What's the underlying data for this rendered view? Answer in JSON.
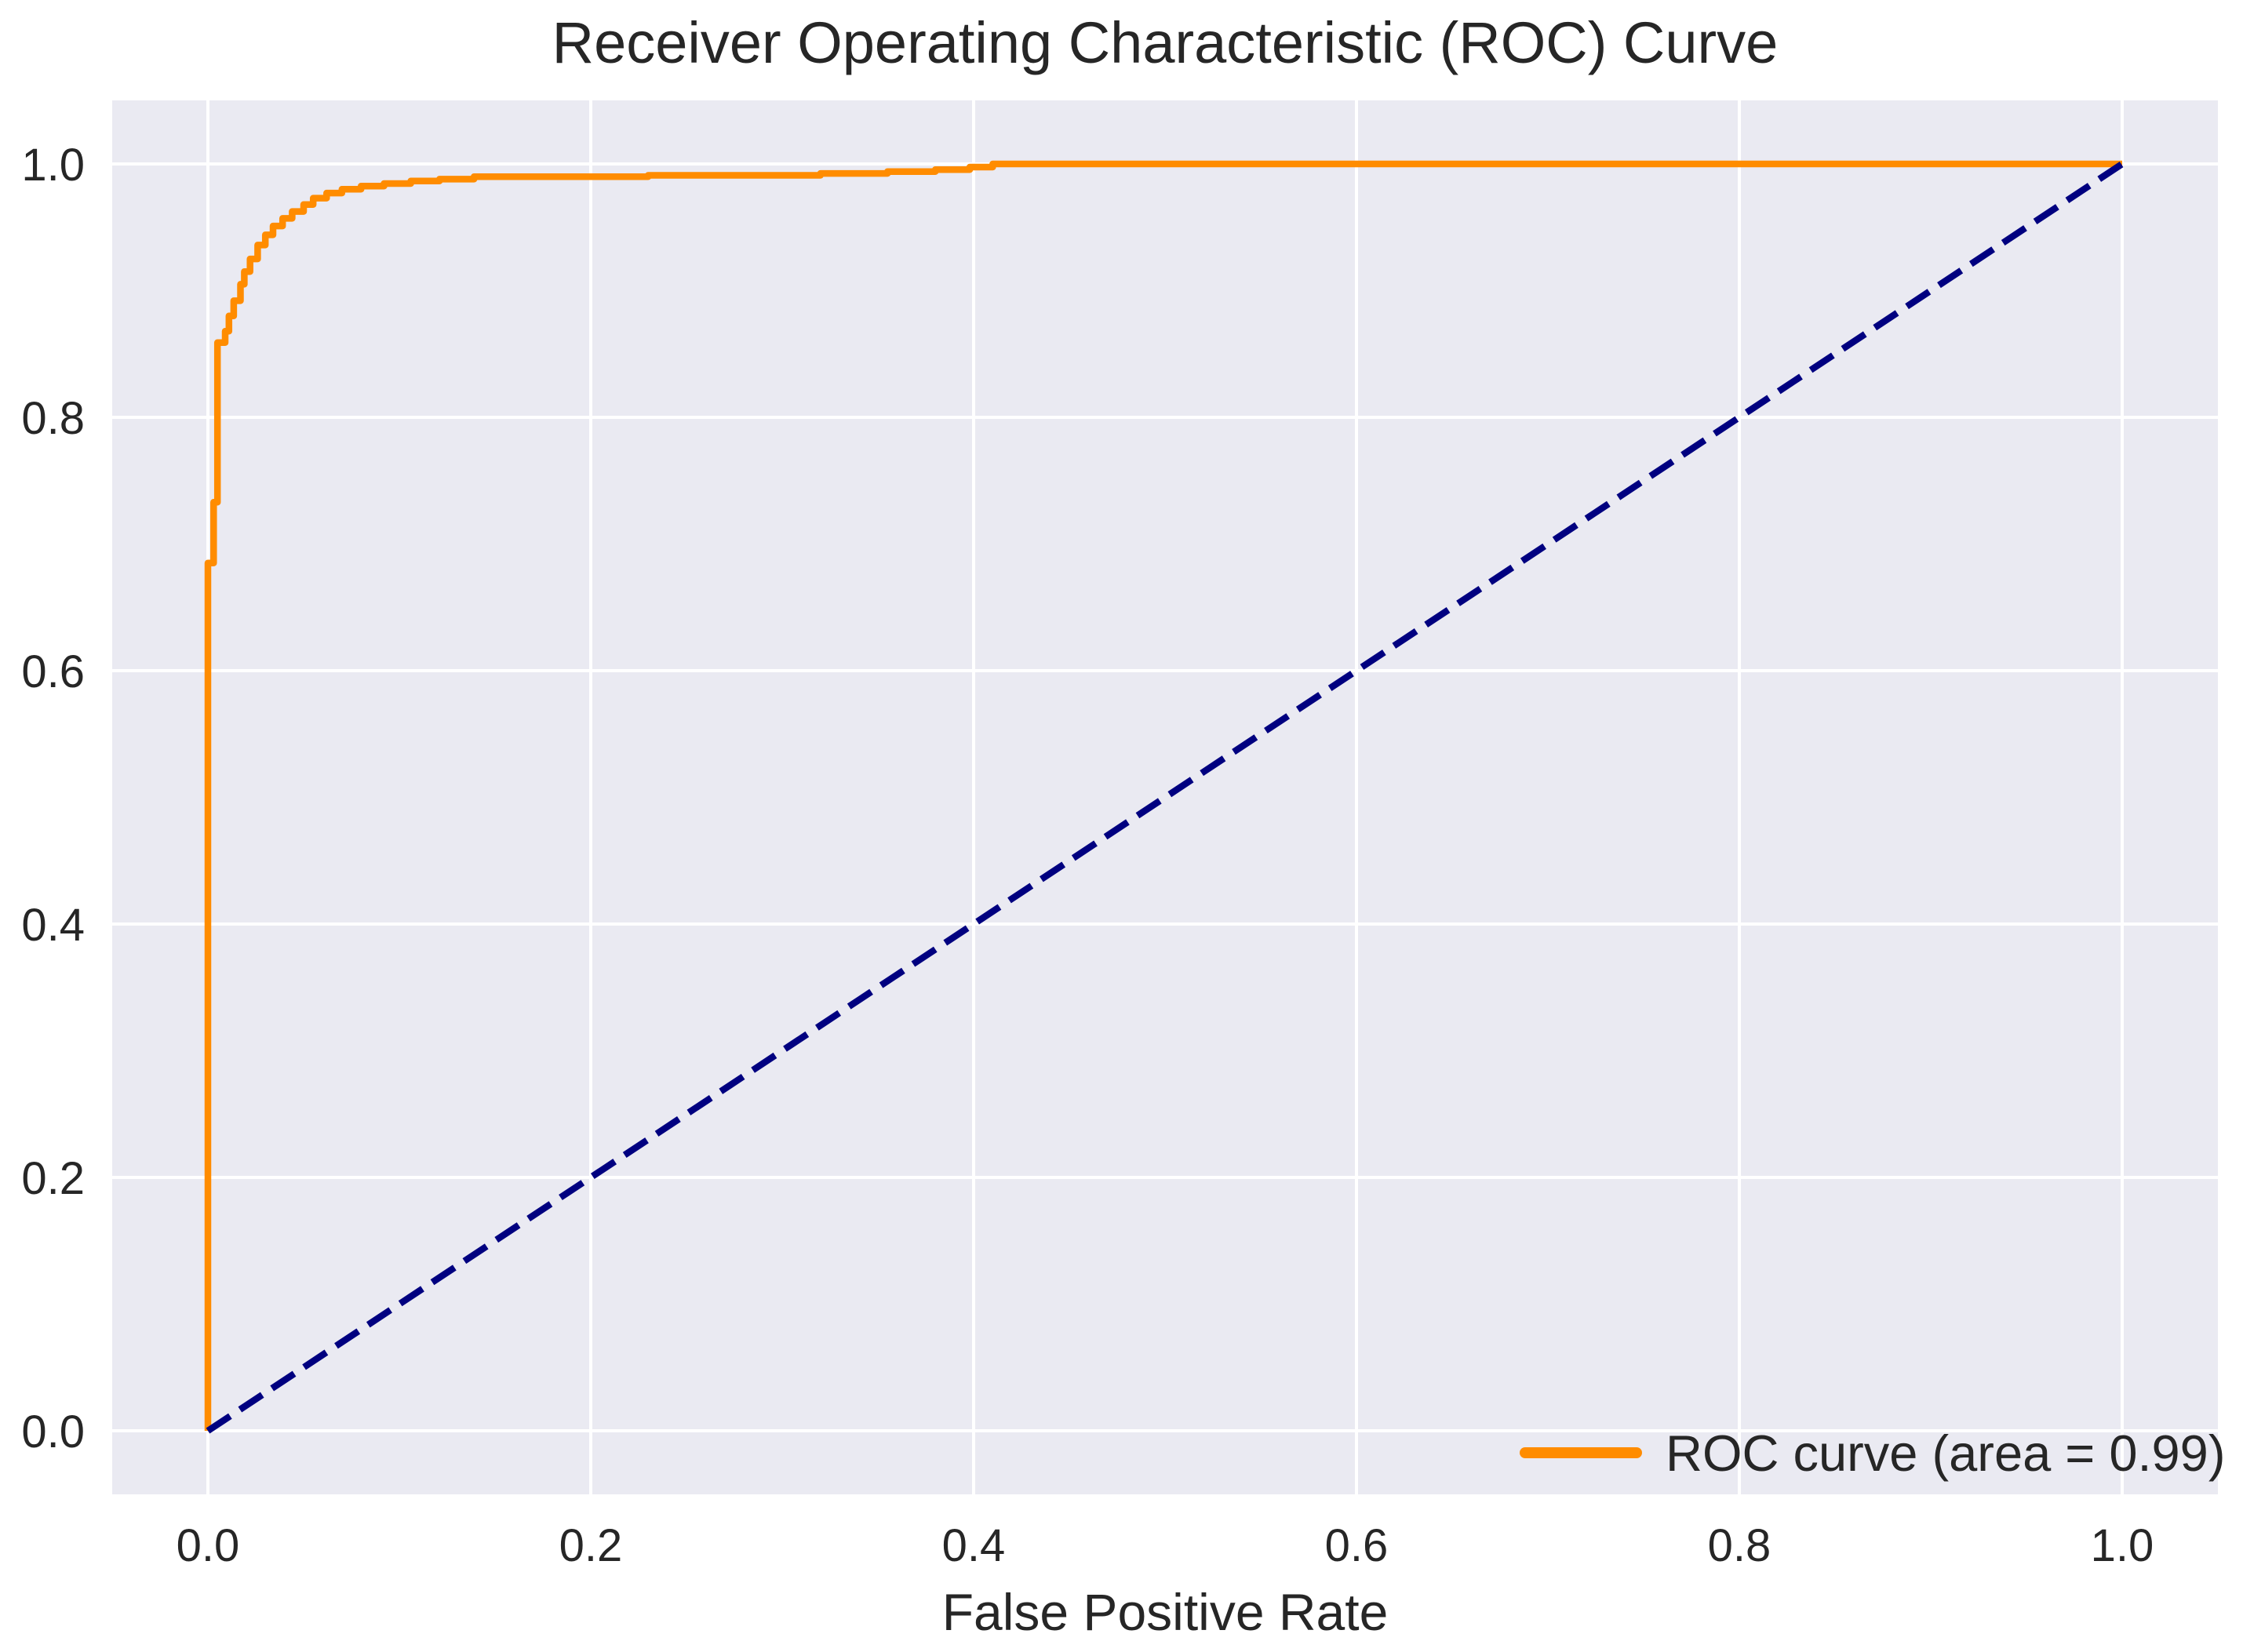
{
  "colors": {
    "figure_background": "#ffffff",
    "plot_background": "#eaeaf2",
    "grid": "#ffffff",
    "text": "#262626",
    "roc_curve": "#ff8c00",
    "chance_line": "#000080"
  },
  "chart_data": {
    "type": "line",
    "title": "Receiver Operating Characteristic (ROC) Curve",
    "xlabel": "False Positive Rate",
    "ylabel": "",
    "xlim": [
      -0.05,
      1.05
    ],
    "ylim": [
      -0.05,
      1.05
    ],
    "grid": true,
    "legend_position": "lower right",
    "x_ticks": [
      0.0,
      0.2,
      0.4,
      0.6,
      0.8,
      1.0
    ],
    "x_tick_labels": [
      "0.0",
      "0.2",
      "0.4",
      "0.6",
      "0.8",
      "1.0"
    ],
    "y_ticks": [
      0.0,
      0.2,
      0.4,
      0.6,
      0.8,
      1.0
    ],
    "y_tick_labels": [
      "0.0",
      "0.2",
      "0.4",
      "0.6",
      "0.8",
      "1.0"
    ],
    "series": [
      {
        "name": "ROC curve (area = 0.99)",
        "auc": 0.99,
        "color": "#ff8c00",
        "style": "solid",
        "in_legend": true,
        "points": [
          [
            0.0,
            0.0
          ],
          [
            0.0,
            0.685
          ],
          [
            0.003,
            0.685
          ],
          [
            0.003,
            0.733
          ],
          [
            0.005,
            0.733
          ],
          [
            0.005,
            0.859
          ],
          [
            0.009,
            0.859
          ],
          [
            0.009,
            0.868
          ],
          [
            0.011,
            0.868
          ],
          [
            0.011,
            0.88
          ],
          [
            0.0135,
            0.88
          ],
          [
            0.0135,
            0.892
          ],
          [
            0.017,
            0.892
          ],
          [
            0.017,
            0.905
          ],
          [
            0.019,
            0.905
          ],
          [
            0.019,
            0.915
          ],
          [
            0.022,
            0.915
          ],
          [
            0.022,
            0.925
          ],
          [
            0.026,
            0.925
          ],
          [
            0.026,
            0.936
          ],
          [
            0.03,
            0.936
          ],
          [
            0.03,
            0.944
          ],
          [
            0.034,
            0.944
          ],
          [
            0.034,
            0.951
          ],
          [
            0.039,
            0.951
          ],
          [
            0.039,
            0.957
          ],
          [
            0.044,
            0.957
          ],
          [
            0.044,
            0.9625
          ],
          [
            0.05,
            0.9625
          ],
          [
            0.05,
            0.968
          ],
          [
            0.055,
            0.968
          ],
          [
            0.055,
            0.973
          ],
          [
            0.062,
            0.973
          ],
          [
            0.062,
            0.977
          ],
          [
            0.07,
            0.977
          ],
          [
            0.07,
            0.98
          ],
          [
            0.08,
            0.98
          ],
          [
            0.08,
            0.9825
          ],
          [
            0.092,
            0.9825
          ],
          [
            0.092,
            0.9845
          ],
          [
            0.106,
            0.9845
          ],
          [
            0.106,
            0.9865
          ],
          [
            0.121,
            0.9865
          ],
          [
            0.121,
            0.988
          ],
          [
            0.139,
            0.988
          ],
          [
            0.139,
            0.99
          ],
          [
            0.23,
            0.99
          ],
          [
            0.23,
            0.991
          ],
          [
            0.32,
            0.991
          ],
          [
            0.32,
            0.9925
          ],
          [
            0.355,
            0.9925
          ],
          [
            0.355,
            0.994
          ],
          [
            0.38,
            0.994
          ],
          [
            0.38,
            0.9955
          ],
          [
            0.398,
            0.9955
          ],
          [
            0.398,
            0.9975
          ],
          [
            0.41,
            0.9975
          ],
          [
            0.41,
            1.0
          ],
          [
            1.0,
            1.0
          ]
        ]
      },
      {
        "name": "chance-diagonal",
        "color": "#000080",
        "style": "dashed",
        "in_legend": false,
        "points": [
          [
            0.0,
            0.0
          ],
          [
            1.0,
            1.0
          ]
        ]
      }
    ]
  },
  "legend": {
    "label": "ROC curve (area = 0.99)"
  }
}
